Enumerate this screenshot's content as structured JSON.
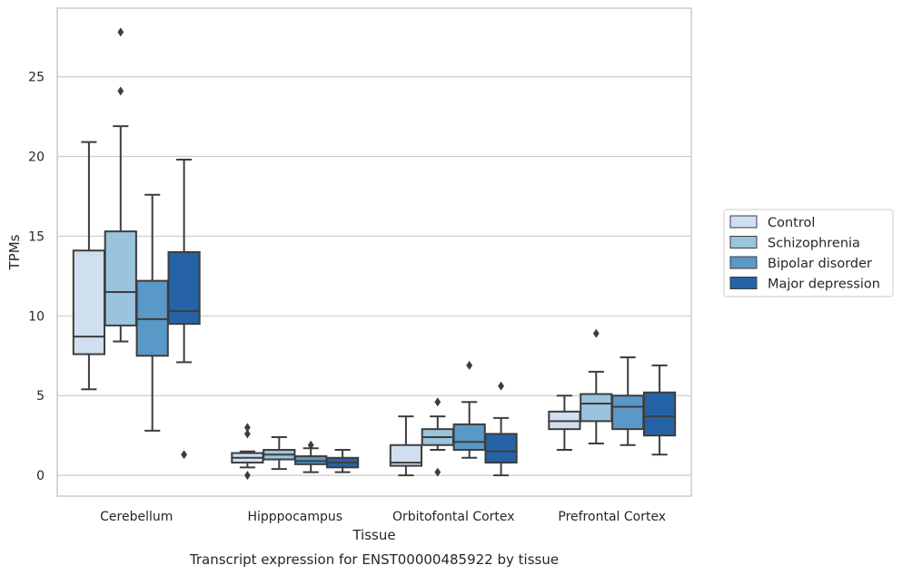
{
  "chart_data": {
    "type": "boxplot",
    "title": "",
    "caption": "Transcript expression for ENST00000485922 by tissue",
    "xlabel": "Tissue",
    "ylabel": "TPMs",
    "ylim": [
      -1.3,
      29.3
    ],
    "yticks": [
      0,
      5,
      10,
      15,
      20,
      25
    ],
    "grid": "horizontal",
    "legend_position": "right",
    "categories": [
      "Cerebellum",
      "Hipppocampus",
      "Orbitofontal Cortex",
      "Prefrontal Cortex"
    ],
    "series": [
      {
        "name": "Control",
        "color": "#cfdff0",
        "boxes": [
          {
            "whislo": 5.4,
            "q1": 7.6,
            "med": 8.7,
            "q3": 14.1,
            "whishi": 20.9,
            "fliers": []
          },
          {
            "whislo": 0.5,
            "q1": 0.8,
            "med": 1.1,
            "q3": 1.4,
            "whishi": 1.5,
            "fliers": [
              0.0,
              2.6,
              3.0
            ]
          },
          {
            "whislo": 0.0,
            "q1": 0.6,
            "med": 0.8,
            "q3": 1.9,
            "whishi": 3.7,
            "fliers": []
          },
          {
            "whislo": 1.6,
            "q1": 2.9,
            "med": 3.4,
            "q3": 4.0,
            "whishi": 5.0,
            "fliers": []
          }
        ]
      },
      {
        "name": "Schizophrenia",
        "color": "#9ac3de",
        "boxes": [
          {
            "whislo": 8.4,
            "q1": 9.4,
            "med": 11.5,
            "q3": 15.3,
            "whishi": 21.9,
            "fliers": [
              24.1,
              27.8
            ]
          },
          {
            "whislo": 0.4,
            "q1": 1.0,
            "med": 1.3,
            "q3": 1.6,
            "whishi": 2.4,
            "fliers": []
          },
          {
            "whislo": 1.6,
            "q1": 1.9,
            "med": 2.4,
            "q3": 2.9,
            "whishi": 3.7,
            "fliers": [
              0.2,
              4.6
            ]
          },
          {
            "whislo": 2.0,
            "q1": 3.4,
            "med": 4.5,
            "q3": 5.1,
            "whishi": 6.5,
            "fliers": [
              8.9
            ]
          }
        ]
      },
      {
        "name": "Bipolar disorder",
        "color": "#5a98c7",
        "boxes": [
          {
            "whislo": 2.8,
            "q1": 7.5,
            "med": 9.8,
            "q3": 12.2,
            "whishi": 17.6,
            "fliers": []
          },
          {
            "whislo": 0.2,
            "q1": 0.7,
            "med": 0.9,
            "q3": 1.2,
            "whishi": 1.7,
            "fliers": [
              1.9
            ]
          },
          {
            "whislo": 1.1,
            "q1": 1.6,
            "med": 2.1,
            "q3": 3.2,
            "whishi": 4.6,
            "fliers": [
              6.9
            ]
          },
          {
            "whislo": 1.9,
            "q1": 2.9,
            "med": 4.3,
            "q3": 5.0,
            "whishi": 7.4,
            "fliers": []
          }
        ]
      },
      {
        "name": "Major depression",
        "color": "#2563a6",
        "boxes": [
          {
            "whislo": 7.1,
            "q1": 9.5,
            "med": 10.3,
            "q3": 14.0,
            "whishi": 19.8,
            "fliers": [
              1.3
            ]
          },
          {
            "whislo": 0.2,
            "q1": 0.5,
            "med": 0.8,
            "q3": 1.1,
            "whishi": 1.6,
            "fliers": []
          },
          {
            "whislo": 0.0,
            "q1": 0.8,
            "med": 1.5,
            "q3": 2.6,
            "whishi": 3.6,
            "fliers": [
              5.6
            ]
          },
          {
            "whislo": 1.3,
            "q1": 2.5,
            "med": 3.7,
            "q3": 5.2,
            "whishi": 6.9,
            "fliers": []
          }
        ]
      }
    ]
  }
}
